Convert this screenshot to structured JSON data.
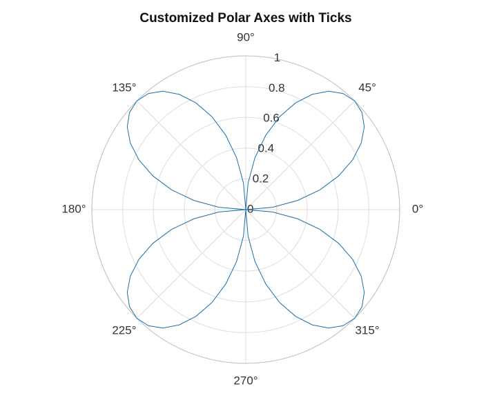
{
  "chart_data": {
    "type": "polar-line",
    "title": "Customized Polar Axes with Ticks",
    "rlim": [
      0,
      1
    ],
    "rticks": [
      0,
      0.2,
      0.4,
      0.6,
      0.8,
      1
    ],
    "thetaticks": [
      {
        "value": 0,
        "label": "0°"
      },
      {
        "value": 45,
        "label": "45°"
      },
      {
        "value": 90,
        "label": "90°"
      },
      {
        "value": 135,
        "label": "135°"
      },
      {
        "value": 180,
        "label": "180°"
      },
      {
        "value": 225,
        "label": "225°"
      },
      {
        "value": 270,
        "label": "270°"
      },
      {
        "value": 315,
        "label": "315°"
      }
    ],
    "grid": true,
    "series": [
      {
        "color": "#1a6fa8",
        "theta": [
          0,
          5,
          10,
          15,
          20,
          25,
          30,
          35,
          40,
          45,
          50,
          55,
          60,
          65,
          70,
          75,
          80,
          85,
          90,
          95,
          100,
          105,
          110,
          115,
          120,
          125,
          130,
          135,
          140,
          145,
          150,
          155,
          160,
          165,
          170,
          175,
          180,
          185,
          190,
          195,
          200,
          205,
          210,
          215,
          220,
          225,
          230,
          235,
          240,
          245,
          250,
          255,
          260,
          265,
          270,
          275,
          280,
          285,
          290,
          295,
          300,
          305,
          310,
          315,
          320,
          325,
          330,
          335,
          340,
          345,
          350,
          355,
          360
        ],
        "r": [
          0,
          0.174,
          0.342,
          0.5,
          0.643,
          0.766,
          0.866,
          0.94,
          0.985,
          1,
          0.985,
          0.94,
          0.866,
          0.766,
          0.643,
          0.5,
          0.342,
          0.174,
          0,
          0.174,
          0.342,
          0.5,
          0.643,
          0.766,
          0.866,
          0.94,
          0.985,
          1,
          0.985,
          0.94,
          0.866,
          0.766,
          0.643,
          0.5,
          0.342,
          0.174,
          0,
          0.174,
          0.342,
          0.5,
          0.643,
          0.766,
          0.866,
          0.94,
          0.985,
          1,
          0.985,
          0.94,
          0.866,
          0.766,
          0.643,
          0.5,
          0.342,
          0.174,
          0,
          0.174,
          0.342,
          0.5,
          0.643,
          0.766,
          0.866,
          0.94,
          0.985,
          1,
          0.985,
          0.94,
          0.866,
          0.766,
          0.643,
          0.5,
          0.342,
          0.174,
          0
        ]
      }
    ]
  }
}
